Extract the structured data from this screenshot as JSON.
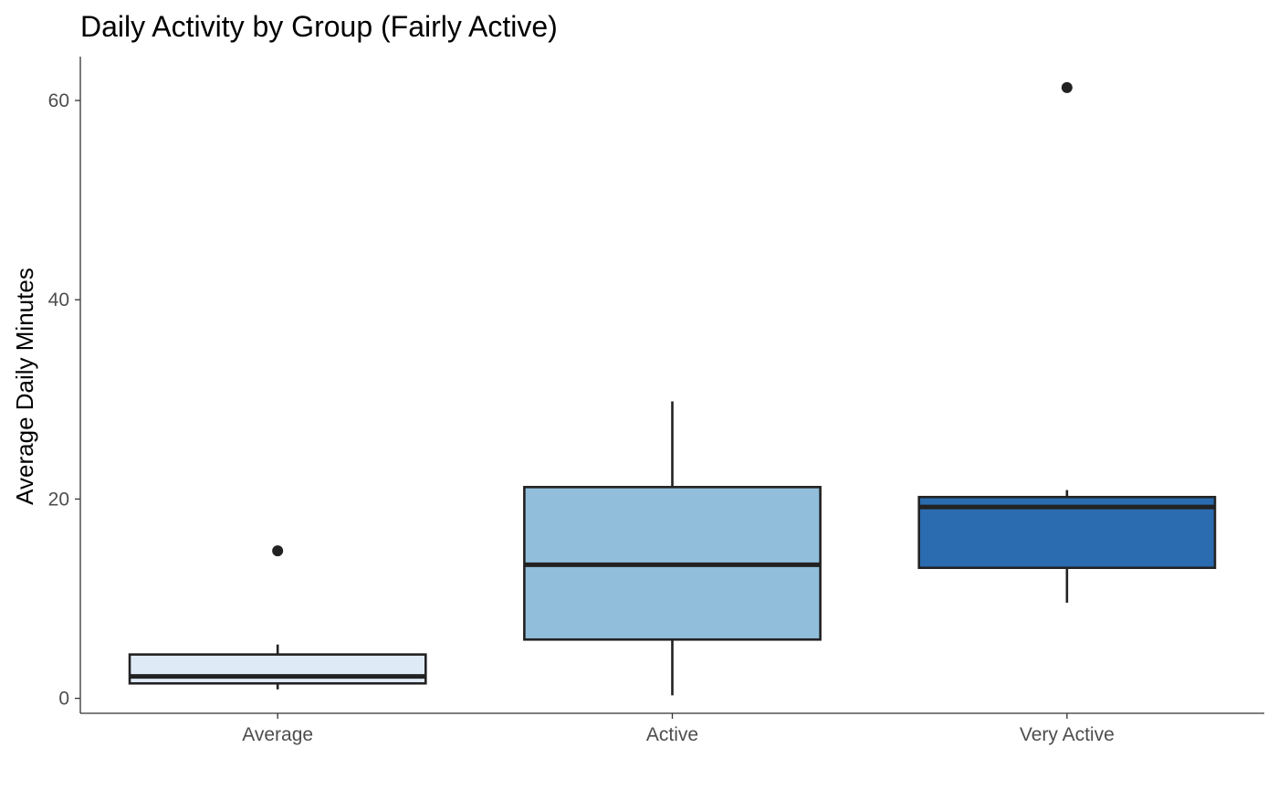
{
  "chart_data": {
    "type": "boxplot",
    "title": "Daily Activity by Group (Fairly Active)",
    "xlabel": "",
    "ylabel": "Average Daily Minutes",
    "ylim": [
      -1.5,
      64.4
    ],
    "yticks": [
      0,
      20,
      40,
      60
    ],
    "yticks_labels": [
      "0",
      "20",
      "40",
      "60"
    ],
    "grid": false,
    "legend": "none",
    "categories": [
      "Average",
      "Active",
      "Very Active"
    ],
    "boxes": [
      {
        "category": "Average",
        "min": 0.9,
        "q1": 1.5,
        "median": 2.2,
        "q3": 4.4,
        "max": 5.4,
        "outliers": [
          14.8
        ],
        "color": "#deebf7"
      },
      {
        "category": "Active",
        "min": 0.3,
        "q1": 5.9,
        "median": 13.4,
        "q3": 21.2,
        "max": 29.8,
        "outliers": [],
        "color": "#91bfdb"
      },
      {
        "category": "Very Active",
        "min": 9.6,
        "q1": 13.1,
        "median": 19.2,
        "q3": 20.2,
        "max": 20.9,
        "outliers": [
          61.3
        ],
        "color": "#2b6cb0"
      }
    ]
  }
}
